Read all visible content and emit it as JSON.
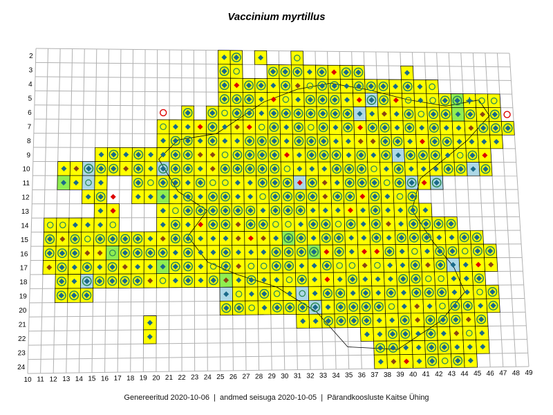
{
  "title": "Vaccinium myrtillus",
  "footer": {
    "generated_label": "Genereeritud 2020-10-06",
    "data_label": "andmed seisuga 2020-10-05",
    "organization": "Pärandkoosluste Kaitse Ühing",
    "separator": "  |  "
  },
  "map": {
    "type": "grid-distribution-map",
    "column_labels": [
      10,
      11,
      12,
      13,
      14,
      15,
      16,
      17,
      18,
      19,
      20,
      21,
      22,
      23,
      24,
      25,
      26,
      27,
      28,
      29,
      30,
      31,
      32,
      33,
      34,
      35,
      36,
      37,
      38,
      39,
      40,
      41,
      42,
      43,
      44,
      45,
      46,
      47,
      48,
      49
    ],
    "row_labels": [
      2,
      3,
      4,
      5,
      6,
      7,
      8,
      9,
      10,
      11,
      12,
      13,
      14,
      15,
      16,
      17,
      18,
      19,
      20,
      21,
      22,
      23,
      24
    ],
    "colors": {
      "occupied_cell": "#ffff00",
      "light_blue_cell": "#add8e6",
      "green_cell": "#90ee50",
      "grid_line": "#b0b0b0",
      "cell_border": "#000000",
      "symbol_main": "#1a6a8a",
      "symbol_ring": "#2e8b57",
      "symbol_red": "#dd0000",
      "symbol_brown": "#8b4513",
      "coast": "#000000"
    },
    "symbol_types": [
      "filled-diamond-icon",
      "ringed-diamond-icon",
      "open-circle-icon",
      "red-diamond-icon",
      "brown-diamond-icon",
      "open-red-circle-icon",
      "plus-icon"
    ],
    "occupied_cells": [
      [
        2,
        25
      ],
      [
        2,
        26
      ],
      [
        2,
        28
      ],
      [
        2,
        31
      ],
      [
        3,
        25
      ],
      [
        3,
        26
      ],
      [
        3,
        29
      ],
      [
        3,
        30
      ],
      [
        3,
        31
      ],
      [
        3,
        32
      ],
      [
        3,
        33
      ],
      [
        3,
        34
      ],
      [
        3,
        35
      ],
      [
        3,
        36
      ],
      [
        3,
        40
      ],
      [
        4,
        25
      ],
      [
        4,
        26
      ],
      [
        4,
        27
      ],
      [
        4,
        28
      ],
      [
        4,
        29
      ],
      [
        4,
        30
      ],
      [
        4,
        31
      ],
      [
        4,
        32
      ],
      [
        4,
        33
      ],
      [
        4,
        34
      ],
      [
        4,
        35
      ],
      [
        4,
        36
      ],
      [
        4,
        37
      ],
      [
        4,
        38
      ],
      [
        4,
        39
      ],
      [
        4,
        40
      ],
      [
        4,
        41
      ],
      [
        4,
        42
      ],
      [
        5,
        25
      ],
      [
        5,
        26
      ],
      [
        5,
        27
      ],
      [
        5,
        28
      ],
      [
        5,
        29
      ],
      [
        5,
        30
      ],
      [
        5,
        31
      ],
      [
        5,
        32
      ],
      [
        5,
        33
      ],
      [
        5,
        34
      ],
      [
        5,
        35
      ],
      [
        5,
        36
      ],
      [
        5,
        37
      ],
      [
        5,
        38
      ],
      [
        5,
        39
      ],
      [
        5,
        40
      ],
      [
        5,
        41
      ],
      [
        5,
        42
      ],
      [
        5,
        43
      ],
      [
        5,
        44
      ],
      [
        5,
        45
      ],
      [
        5,
        46
      ],
      [
        5,
        47
      ],
      [
        6,
        22
      ],
      [
        6,
        24
      ],
      [
        6,
        25
      ],
      [
        6,
        26
      ],
      [
        6,
        27
      ],
      [
        6,
        28
      ],
      [
        6,
        29
      ],
      [
        6,
        30
      ],
      [
        6,
        31
      ],
      [
        6,
        32
      ],
      [
        6,
        33
      ],
      [
        6,
        34
      ],
      [
        6,
        35
      ],
      [
        6,
        36
      ],
      [
        6,
        37
      ],
      [
        6,
        38
      ],
      [
        6,
        39
      ],
      [
        6,
        40
      ],
      [
        6,
        41
      ],
      [
        6,
        42
      ],
      [
        6,
        43
      ],
      [
        6,
        44
      ],
      [
        6,
        45
      ],
      [
        6,
        46
      ],
      [
        6,
        47
      ]
    ]
  }
}
